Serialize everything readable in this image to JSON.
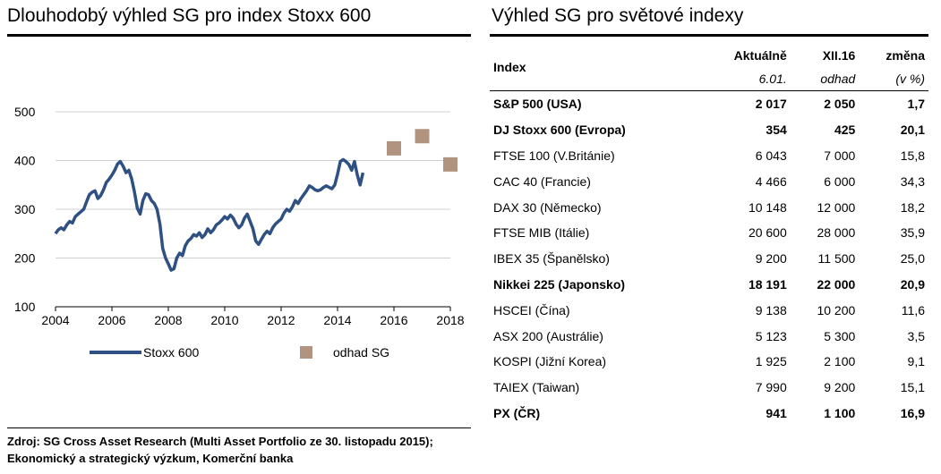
{
  "left_title": "Dlouhodobý výhled SG pro index Stoxx 600",
  "right_title": "Výhled SG pro světové indexy",
  "source_text": "Zdroj: SG Cross Asset Research (Multi Asset Portfolio ze 30. listopadu 2015); Ekonomický a strategický výzkum, Komerční banka",
  "colors": {
    "line": "#2e5082",
    "marker": "#b09480",
    "grid": "#d0d0d0"
  },
  "chart_data": {
    "type": "line",
    "xlim": [
      2004,
      2018
    ],
    "ylim": [
      100,
      500
    ],
    "x_ticks": [
      "2004",
      "2006",
      "2008",
      "2010",
      "2012",
      "2014",
      "2016",
      "2018"
    ],
    "y_ticks": [
      "100",
      "200",
      "300",
      "400",
      "500"
    ],
    "grid": "horizontal",
    "legend_position": "bottom",
    "series": [
      {
        "name": "Stoxx 600",
        "style": "line",
        "x": [
          2004.0,
          2004.1,
          2004.2,
          2004.3,
          2004.4,
          2004.5,
          2004.6,
          2004.7,
          2004.8,
          2004.9,
          2005.0,
          2005.1,
          2005.2,
          2005.3,
          2005.4,
          2005.5,
          2005.6,
          2005.7,
          2005.8,
          2005.9,
          2006.0,
          2006.1,
          2006.2,
          2006.3,
          2006.4,
          2006.5,
          2006.6,
          2006.7,
          2006.8,
          2006.9,
          2007.0,
          2007.1,
          2007.2,
          2007.3,
          2007.4,
          2007.5,
          2007.6,
          2007.7,
          2007.8,
          2007.9,
          2008.0,
          2008.1,
          2008.2,
          2008.3,
          2008.4,
          2008.5,
          2008.6,
          2008.7,
          2008.8,
          2008.9,
          2009.0,
          2009.1,
          2009.2,
          2009.3,
          2009.4,
          2009.5,
          2009.6,
          2009.7,
          2009.8,
          2009.9,
          2010.0,
          2010.1,
          2010.2,
          2010.3,
          2010.4,
          2010.5,
          2010.6,
          2010.7,
          2010.8,
          2010.9,
          2011.0,
          2011.1,
          2011.2,
          2011.3,
          2011.4,
          2011.5,
          2011.6,
          2011.7,
          2011.8,
          2011.9,
          2012.0,
          2012.1,
          2012.2,
          2012.3,
          2012.4,
          2012.5,
          2012.6,
          2012.7,
          2012.8,
          2012.9,
          2013.0,
          2013.1,
          2013.2,
          2013.3,
          2013.4,
          2013.5,
          2013.6,
          2013.7,
          2013.8,
          2013.9,
          2014.0,
          2014.1,
          2014.2,
          2014.3,
          2014.4,
          2014.5,
          2014.6,
          2014.7,
          2014.8,
          2014.9
        ],
        "values": [
          250,
          258,
          262,
          258,
          268,
          275,
          272,
          285,
          290,
          295,
          300,
          315,
          330,
          335,
          338,
          322,
          328,
          340,
          355,
          362,
          370,
          380,
          393,
          398,
          388,
          375,
          380,
          362,
          335,
          302,
          290,
          318,
          332,
          330,
          318,
          312,
          300,
          270,
          220,
          200,
          188,
          175,
          178,
          200,
          210,
          205,
          225,
          235,
          240,
          248,
          245,
          252,
          242,
          248,
          260,
          252,
          258,
          268,
          272,
          278,
          285,
          280,
          288,
          282,
          270,
          262,
          268,
          282,
          290,
          275,
          260,
          235,
          228,
          238,
          248,
          255,
          250,
          262,
          270,
          275,
          280,
          292,
          300,
          296,
          305,
          318,
          312,
          322,
          330,
          338,
          348,
          345,
          340,
          338,
          340,
          345,
          348,
          345,
          342,
          350,
          372,
          398,
          402,
          398,
          392,
          380,
          398,
          370,
          350,
          375
        ]
      },
      {
        "name": "odhad SG",
        "style": "marker",
        "x": [
          2016,
          2017,
          2018
        ],
        "values": [
          425,
          450,
          392
        ]
      }
    ]
  },
  "table": {
    "headers": {
      "index": "Index",
      "current": "Aktuálně",
      "forecast": "XII.16",
      "change": "změna",
      "current_sub": "6.01.",
      "forecast_sub": "odhad",
      "change_sub": "(v %)"
    },
    "rows": [
      {
        "name": "S&P 500 (USA)",
        "current": "2 017",
        "forecast": "2 050",
        "change": "1,7",
        "bold": true
      },
      {
        "name": "DJ Stoxx 600 (Evropa)",
        "current": "354",
        "forecast": "425",
        "change": "20,1",
        "bold": true
      },
      {
        "name": "FTSE 100 (V.Británie)",
        "current": "6 043",
        "forecast": "7 000",
        "change": "15,8",
        "bold": false
      },
      {
        "name": "CAC 40 (Francie)",
        "current": "4 466",
        "forecast": "6 000",
        "change": "34,3",
        "bold": false
      },
      {
        "name": "DAX 30 (Německo)",
        "current": "10 148",
        "forecast": "12 000",
        "change": "18,2",
        "bold": false
      },
      {
        "name": "FTSE MIB (Itálie)",
        "current": "20 600",
        "forecast": "28 000",
        "change": "35,9",
        "bold": false
      },
      {
        "name": "IBEX 35 (Španělsko)",
        "current": "9 200",
        "forecast": "11 500",
        "change": "25,0",
        "bold": false
      },
      {
        "name": "Nikkei 225 (Japonsko)",
        "current": "18 191",
        "forecast": "22 000",
        "change": "20,9",
        "bold": true
      },
      {
        "name": "HSCEI (Čína)",
        "current": "9 138",
        "forecast": "10 200",
        "change": "11,6",
        "bold": false
      },
      {
        "name": "ASX 200 (Austrálie)",
        "current": "5 123",
        "forecast": "5 300",
        "change": "3,5",
        "bold": false
      },
      {
        "name": "KOSPI (Jižní Korea)",
        "current": "1 925",
        "forecast": "2 100",
        "change": "9,1",
        "bold": false
      },
      {
        "name": "TAIEX (Taiwan)",
        "current": "7 990",
        "forecast": "9 200",
        "change": "15,1",
        "bold": false
      },
      {
        "name": "PX (ČR)",
        "current": "941",
        "forecast": "1 100",
        "change": "16,9",
        "bold": true
      }
    ]
  }
}
